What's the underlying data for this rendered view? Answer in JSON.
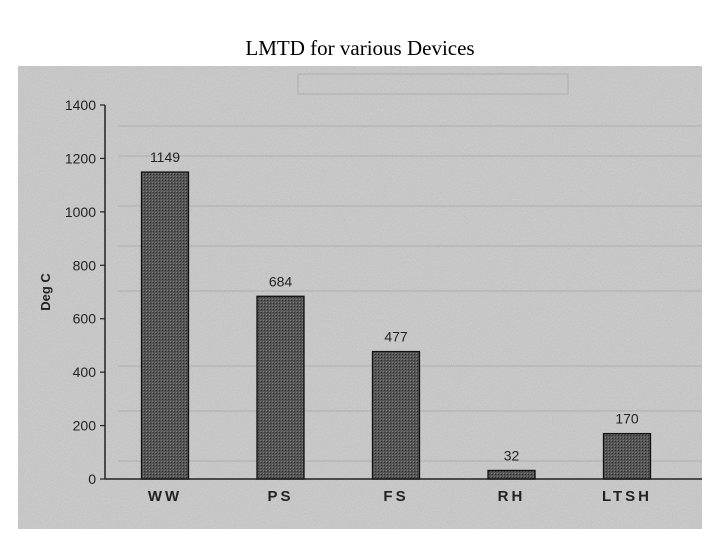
{
  "page": {
    "title": "LMTD for various Devices"
  },
  "chart_data": {
    "type": "bar",
    "title": "LMTD for various Devices",
    "xlabel": "",
    "ylabel": "Deg C",
    "categories": [
      "WW",
      "PS",
      "FS",
      "RH",
      "LTSH"
    ],
    "values": [
      1149,
      684,
      477,
      32,
      170
    ],
    "data_labels": [
      "1149",
      "684",
      "477",
      "32",
      "170"
    ],
    "ylim": [
      0,
      1400
    ],
    "yticks": [
      "0",
      "200",
      "400",
      "600",
      "800",
      "1000",
      "1200",
      "1400"
    ],
    "grid": false,
    "legend": "none",
    "colors": {
      "bar_fill": "#4a4a4a",
      "bar_edge": "#111111",
      "scan_background": "#c9c9c9",
      "axis": "#222222"
    }
  }
}
